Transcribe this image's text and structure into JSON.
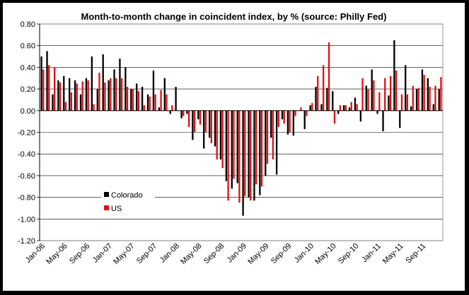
{
  "chart_data": {
    "type": "bar",
    "title": "Month-to-month change in coincident index, by % (source: Philly Fed)",
    "ylim": [
      -1.2,
      0.8
    ],
    "yticks": [
      "0.80",
      "0.60",
      "0.40",
      "0.20",
      "0.00",
      "-0.20",
      "-0.40",
      "-0.60",
      "-0.80",
      "-1.00",
      "-1.20"
    ],
    "ytick_values": [
      0.8,
      0.6,
      0.4,
      0.2,
      0.0,
      -0.2,
      -0.4,
      -0.6,
      -0.8,
      -1.0,
      -1.2
    ],
    "xtick_labels": [
      "Jan-06",
      "May-06",
      "Sep-06",
      "Jan-07",
      "May-07",
      "Sep-07",
      "Jan-08",
      "May-08",
      "Sep-08",
      "Jan-09",
      "May-09",
      "Sep-09",
      "Jan-10",
      "May-10",
      "Sep-10",
      "Jan-11",
      "May-11",
      "Sep-11"
    ],
    "grid": "horizontal",
    "legend_position": "lower-left",
    "series": [
      {
        "name": "Colorado",
        "color": "#000000",
        "values": [
          0.5,
          0.55,
          0.15,
          0.28,
          0.32,
          0.3,
          0.28,
          0.15,
          0.3,
          0.5,
          0.2,
          0.52,
          0.28,
          0.38,
          0.48,
          0.4,
          0.2,
          0.25,
          0.22,
          0.15,
          0.37,
          0.03,
          0.3,
          -0.03,
          0.22,
          -0.07,
          -0.03,
          -0.27,
          -0.08,
          -0.35,
          -0.25,
          -0.33,
          -0.45,
          -0.65,
          -0.72,
          -0.67,
          -0.97,
          -0.8,
          -0.83,
          -0.78,
          -0.6,
          -0.25,
          -0.59,
          -0.08,
          -0.22,
          -0.23,
          0.0,
          -0.17,
          0.05,
          0.22,
          0.06,
          0.21,
          0.18,
          -0.03,
          0.05,
          0.03,
          0.12,
          -0.1,
          0.23,
          0.38,
          -0.03,
          -0.19,
          0.14,
          0.65,
          -0.16,
          0.42,
          0.04,
          0.2,
          0.38,
          0.3,
          0.06,
          0.2
        ]
      },
      {
        "name": "US",
        "color": "#e01010",
        "values": [
          0.38,
          0.42,
          0.4,
          0.26,
          0.08,
          0.17,
          0.25,
          0.27,
          0.28,
          0.06,
          0.35,
          0.26,
          0.3,
          0.3,
          0.3,
          0.22,
          0.2,
          0.18,
          0.05,
          0.13,
          0.15,
          0.19,
          0.15,
          0.05,
          0.0,
          -0.05,
          -0.15,
          -0.2,
          -0.13,
          -0.2,
          -0.3,
          -0.45,
          -0.53,
          -0.83,
          -0.63,
          -0.85,
          -0.79,
          -0.83,
          -0.68,
          -0.7,
          -0.49,
          -0.45,
          -0.15,
          -0.12,
          -0.2,
          -0.05,
          0.03,
          -0.05,
          0.07,
          0.32,
          0.42,
          0.63,
          -0.12,
          0.05,
          0.05,
          0.08,
          0.06,
          0.3,
          0.2,
          0.28,
          0.17,
          0.3,
          0.32,
          0.37,
          0.15,
          0.15,
          0.23,
          0.21,
          0.33,
          0.22,
          0.23,
          0.31
        ]
      }
    ]
  }
}
